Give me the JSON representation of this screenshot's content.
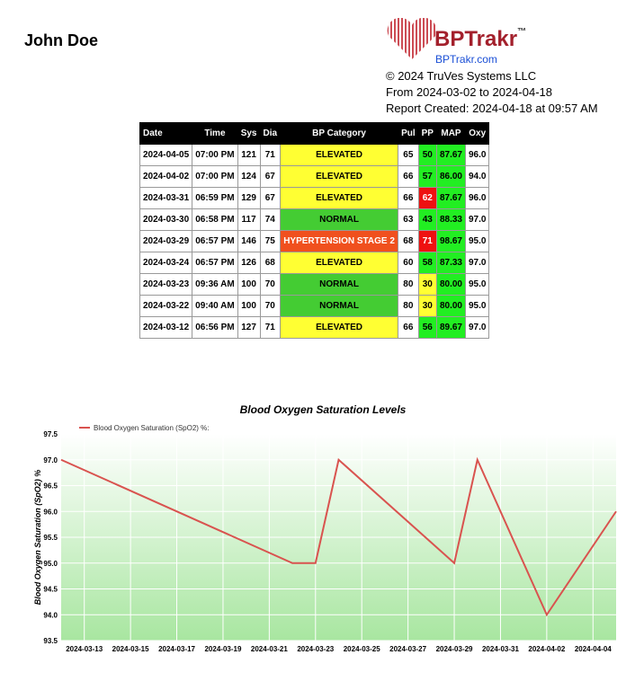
{
  "header": {
    "patient": "John Doe",
    "brand": "BPTrakr",
    "trademark": "™",
    "url": "BPTrakr.com",
    "copyright": "© 2024 TruVes Systems LLC",
    "range": "From 2024-03-02 to 2024-04-18",
    "created": "Report Created: 2024-04-18 at 09:57 AM"
  },
  "table": {
    "columns": [
      "Date",
      "Time",
      "Sys",
      "Dia",
      "BP Category",
      "Pul",
      "PP",
      "MAP",
      "Oxy"
    ],
    "rows": [
      [
        "2024-04-05",
        "07:00 PM",
        "121",
        "71",
        "ELEVATED",
        "65",
        "50",
        "87.67",
        "96.0"
      ],
      [
        "2024-04-02",
        "07:00 PM",
        "124",
        "67",
        "ELEVATED",
        "66",
        "57",
        "86.00",
        "94.0"
      ],
      [
        "2024-03-31",
        "06:59 PM",
        "129",
        "67",
        "ELEVATED",
        "66",
        "62",
        "87.67",
        "96.0"
      ],
      [
        "2024-03-30",
        "06:58 PM",
        "117",
        "74",
        "NORMAL",
        "63",
        "43",
        "88.33",
        "97.0"
      ],
      [
        "2024-03-29",
        "06:57 PM",
        "146",
        "75",
        "HYPERTENSION STAGE 2",
        "68",
        "71",
        "98.67",
        "95.0"
      ],
      [
        "2024-03-24",
        "06:57 PM",
        "126",
        "68",
        "ELEVATED",
        "60",
        "58",
        "87.33",
        "97.0"
      ],
      [
        "2024-03-23",
        "09:36 AM",
        "100",
        "70",
        "NORMAL",
        "80",
        "30",
        "80.00",
        "95.0"
      ],
      [
        "2024-03-22",
        "09:40 AM",
        "100",
        "70",
        "NORMAL",
        "80",
        "30",
        "80.00",
        "95.0"
      ],
      [
        "2024-03-12",
        "06:56 PM",
        "127",
        "71",
        "ELEVATED",
        "66",
        "56",
        "89.67",
        "97.0"
      ]
    ],
    "row_colors": [
      [
        "#ffff33",
        "#22ee22",
        "#22ee22"
      ],
      [
        "#ffff33",
        "#22ee22",
        "#22ee22"
      ],
      [
        "#ffff33",
        "#ee1111",
        "#22ee22"
      ],
      [
        "#44cc33",
        "#22ee22",
        "#22ee22"
      ],
      [
        "#f0501e",
        "#ee1111",
        "#22ee22"
      ],
      [
        "#ffff33",
        "#22ee22",
        "#22ee22"
      ],
      [
        "#44cc33",
        "#ffff33",
        "#22ee22"
      ],
      [
        "#44cc33",
        "#ffff33",
        "#22ee22"
      ],
      [
        "#ffff33",
        "#22ee22",
        "#22ee22"
      ]
    ]
  },
  "chart_data": {
    "type": "line",
    "title": "Blood Oxygen Saturation Levels",
    "y_label": "Blood Oxygen Saturation (SpO2) %",
    "x": [
      "2024-03-12",
      "2024-03-22",
      "2024-03-23",
      "2024-03-24",
      "2024-03-29",
      "2024-03-30",
      "2024-03-31",
      "2024-04-02",
      "2024-04-05"
    ],
    "series": [
      {
        "name": "Blood Oxygen Saturation (SpO2) %:",
        "color": "#d9534f",
        "values": [
          97.0,
          95.0,
          95.0,
          97.0,
          95.0,
          97.0,
          96.0,
          94.0,
          96.0
        ]
      }
    ],
    "xlim": [
      "2024-03-12",
      "2024-04-05"
    ],
    "xticks": [
      "2024-03-13",
      "2024-03-15",
      "2024-03-17",
      "2024-03-19",
      "2024-03-21",
      "2024-03-23",
      "2024-03-25",
      "2024-03-27",
      "2024-03-29",
      "2024-03-31",
      "2024-04-02",
      "2024-04-04"
    ],
    "ylim": [
      93.5,
      97.5
    ],
    "yticks": [
      93.5,
      {
        "value": 94,
        "label": "94.0"
      },
      94.5,
      {
        "value": 95,
        "label": "95.0"
      },
      95.5,
      {
        "value": 96,
        "label": "96.0"
      },
      96.5,
      {
        "value": 97,
        "label": "97.0"
      },
      97.5
    ],
    "grid": true
  }
}
